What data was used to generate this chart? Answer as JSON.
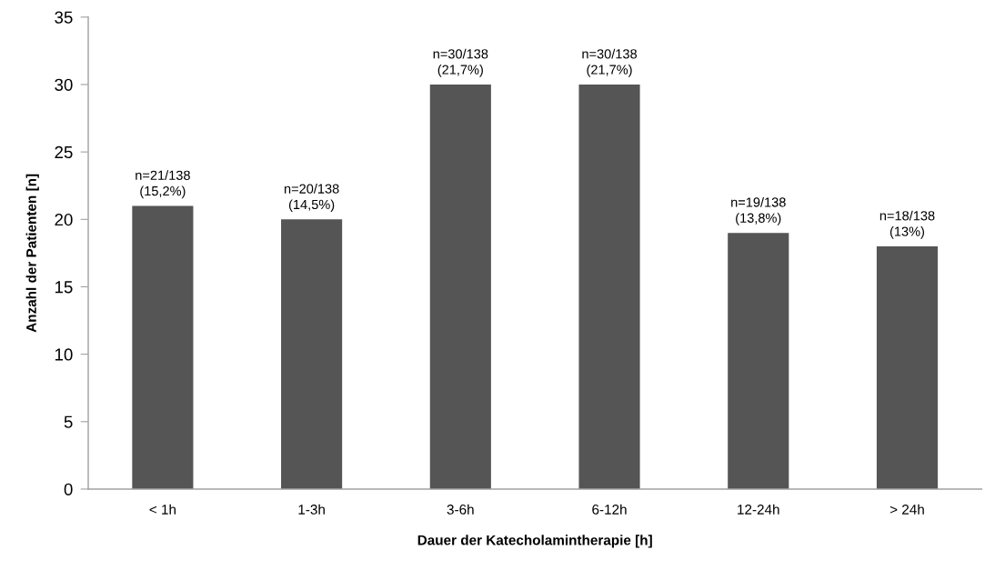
{
  "chart_data": {
    "type": "bar",
    "xlabel": "Dauer der Katecholamintherapie [h]",
    "ylabel": "Anzahl der Patienten [n]",
    "categories": [
      "< 1h",
      "1-3h",
      "3-6h",
      "6-12h",
      "12-24h",
      "> 24h"
    ],
    "values": [
      21,
      20,
      30,
      30,
      19,
      18
    ],
    "color": "#555555",
    "value_labels": [
      "n=21/138\n(15,2%)",
      "n=20/138\n(14,5%)",
      "n=30/138\n(21,7%)",
      "n=30/138\n(21,7%)",
      "n=19/138\n(13,8%)",
      "n=18/138\n(13%)"
    ],
    "ylim": [
      0,
      35
    ],
    "yticks": [
      0,
      5,
      10,
      15,
      20,
      25,
      30,
      35
    ],
    "grid": false,
    "legend": false
  }
}
